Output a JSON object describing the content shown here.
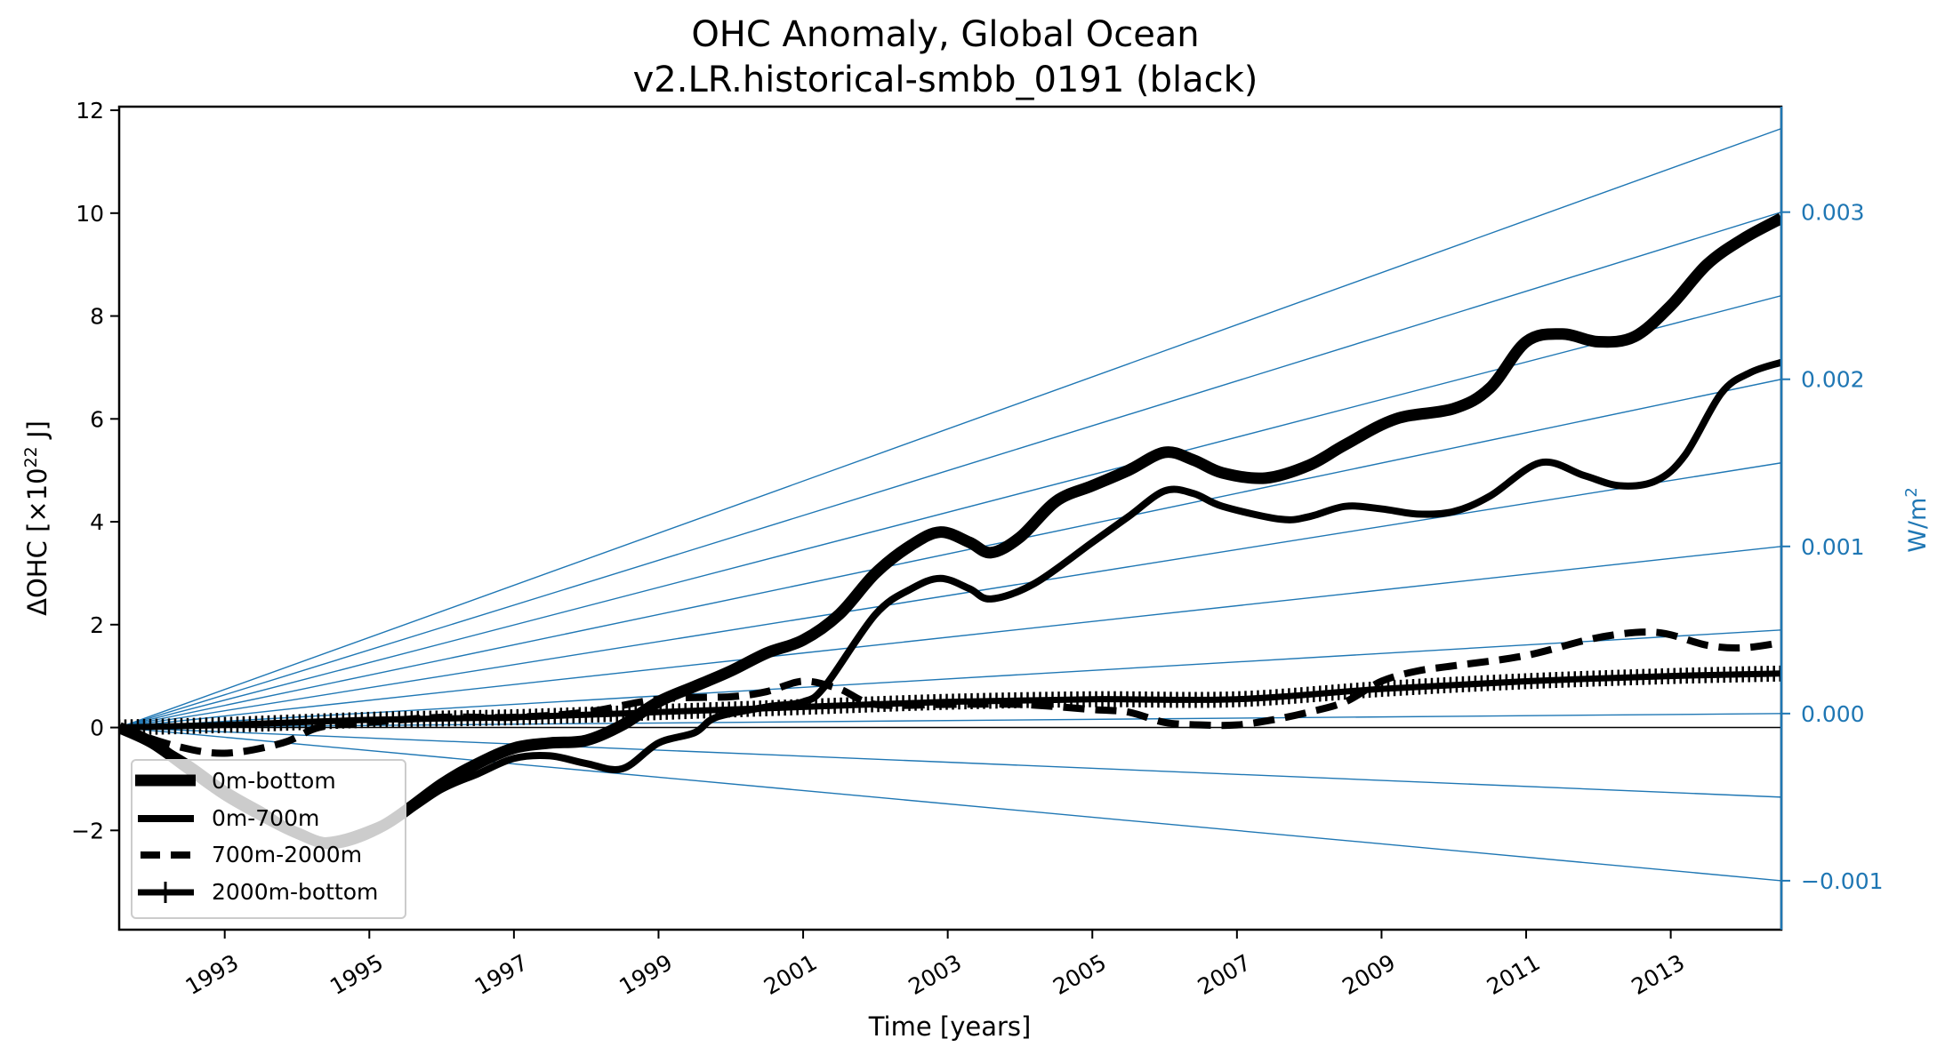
{
  "chart_data": {
    "type": "line",
    "title": "OHC Anomaly, Global Ocean",
    "subtitle": "v2.LR.historical-smbb_0191 (black)",
    "xlabel": "Time [years]",
    "ylabel": "ΔOHC [×10",
    "ylabel_sup": "22",
    "ylabel_tail": " J]",
    "y2label": "W/m",
    "y2label_sup": "2",
    "xlim": [
      1991.54,
      2014.53
    ],
    "ylim": [
      -3.93,
      12.07
    ],
    "y2lim": [
      -0.001293,
      0.003631
    ],
    "grid": false,
    "legend_position": "lower-left",
    "x_ticks": [
      1993,
      1995,
      1997,
      1999,
      2001,
      2003,
      2005,
      2007,
      2009,
      2011,
      2013
    ],
    "x_tick_labels": [
      "1993",
      "1995",
      "1997",
      "1999",
      "2001",
      "2003",
      "2005",
      "2007",
      "2009",
      "2011",
      "2013"
    ],
    "y_ticks": [
      -2,
      0,
      2,
      4,
      6,
      8,
      10,
      12
    ],
    "y_tick_labels": [
      "−2",
      "0",
      "2",
      "4",
      "6",
      "8",
      "10",
      "12"
    ],
    "y2_ticks": [
      -0.001,
      0.0,
      0.001,
      0.002,
      0.003
    ],
    "y2_tick_labels": [
      "−0.001",
      "0.000",
      "0.001",
      "0.002",
      "0.003"
    ],
    "colors": {
      "series": "#000000",
      "reference": "#1f77b4",
      "legend_border": "#cccccc"
    },
    "reference_lines": {
      "description": "constant heat-flux reference lines from origin",
      "unit": "W/m2",
      "values": [
        -0.001,
        -0.0005,
        0.0,
        0.0005,
        0.001,
        0.0015,
        0.002,
        0.0025,
        0.003,
        0.0035
      ]
    },
    "series": [
      {
        "name": "0m-bottom",
        "style": "thick-solid",
        "x": [
          1991.54,
          1992.0,
          1992.5,
          1993.0,
          1993.5,
          1994.0,
          1994.5,
          1995.2,
          1996.0,
          1996.5,
          1997.0,
          1997.5,
          1998.0,
          1998.5,
          1999.0,
          1999.5,
          2000.0,
          2000.5,
          2001.0,
          2001.5,
          2002.0,
          2002.5,
          2002.9,
          2003.3,
          2003.6,
          2004.0,
          2004.5,
          2005.0,
          2005.5,
          2006.0,
          2006.4,
          2006.8,
          2007.4,
          2008.0,
          2008.5,
          2009.2,
          2010.0,
          2010.5,
          2011.0,
          2011.5,
          2012.0,
          2012.5,
          2013.0,
          2013.5,
          2014.0,
          2014.53
        ],
        "y": [
          0,
          -0.3,
          -0.8,
          -1.3,
          -1.7,
          -2.05,
          -2.25,
          -1.9,
          -1.1,
          -0.7,
          -0.4,
          -0.3,
          -0.25,
          0.05,
          0.5,
          0.8,
          1.1,
          1.45,
          1.7,
          2.2,
          3.0,
          3.55,
          3.8,
          3.6,
          3.4,
          3.7,
          4.4,
          4.7,
          5.0,
          5.35,
          5.2,
          4.95,
          4.85,
          5.1,
          5.5,
          6.0,
          6.2,
          6.6,
          7.5,
          7.65,
          7.5,
          7.6,
          8.2,
          9.0,
          9.5,
          9.9
        ]
      },
      {
        "name": "0m-700m",
        "style": "solid",
        "x": [
          1991.54,
          1992.0,
          1992.5,
          1993.0,
          1993.5,
          1994.3,
          1995.3,
          1996.0,
          1996.5,
          1997.0,
          1997.5,
          1998.0,
          1998.5,
          1999.0,
          1999.5,
          1999.8,
          2000.5,
          2001.0,
          2001.3,
          2002.0,
          2002.5,
          2002.9,
          2003.3,
          2003.6,
          2004.2,
          2005.0,
          2005.5,
          2006.0,
          2006.4,
          2006.8,
          2007.6,
          2008.0,
          2008.5,
          2009.0,
          2009.5,
          2010.0,
          2010.5,
          2011.2,
          2011.8,
          2012.3,
          2012.8,
          2013.2,
          2013.7,
          2014.1,
          2014.53
        ],
        "y": [
          0,
          -0.3,
          -0.7,
          -1.2,
          -1.6,
          -2.2,
          -1.8,
          -1.2,
          -0.9,
          -0.6,
          -0.55,
          -0.7,
          -0.8,
          -0.3,
          -0.1,
          0.2,
          0.4,
          0.5,
          0.8,
          2.2,
          2.7,
          2.9,
          2.7,
          2.5,
          2.8,
          3.6,
          4.1,
          4.6,
          4.55,
          4.3,
          4.05,
          4.1,
          4.3,
          4.25,
          4.15,
          4.2,
          4.5,
          5.15,
          4.9,
          4.7,
          4.8,
          5.3,
          6.5,
          6.9,
          7.1
        ]
      },
      {
        "name": "700m-2000m",
        "style": "dashed",
        "x": [
          1991.54,
          1992.3,
          1993.0,
          1993.8,
          1994.3,
          1995.0,
          1996.0,
          1997.0,
          1998.0,
          1999.0,
          2000.0,
          2000.5,
          2001.0,
          2001.5,
          2002.0,
          2003.0,
          2004.0,
          2005.0,
          2005.5,
          2006.0,
          2006.5,
          2007.0,
          2007.5,
          2008.0,
          2008.5,
          2009.0,
          2009.5,
          2010.0,
          2011.0,
          2012.0,
          2012.8,
          2013.5,
          2014.0,
          2014.53
        ],
        "y": [
          0,
          -0.35,
          -0.5,
          -0.3,
          0.0,
          0.1,
          0.2,
          0.2,
          0.3,
          0.55,
          0.6,
          0.7,
          0.9,
          0.75,
          0.45,
          0.45,
          0.45,
          0.35,
          0.3,
          0.1,
          0.05,
          0.05,
          0.15,
          0.3,
          0.5,
          0.9,
          1.1,
          1.2,
          1.4,
          1.75,
          1.85,
          1.6,
          1.55,
          1.65
        ]
      },
      {
        "name": "2000m-bottom",
        "style": "solid-with-vertical-markers",
        "x": [
          1991.54,
          1993.0,
          1995.0,
          1997.0,
          1999.0,
          2001.0,
          2003.0,
          2005.0,
          2007.0,
          2009.0,
          2011.0,
          2013.0,
          2014.53
        ],
        "y": [
          0,
          0.05,
          0.15,
          0.2,
          0.3,
          0.4,
          0.5,
          0.55,
          0.55,
          0.75,
          0.9,
          1.0,
          1.05
        ]
      }
    ]
  }
}
